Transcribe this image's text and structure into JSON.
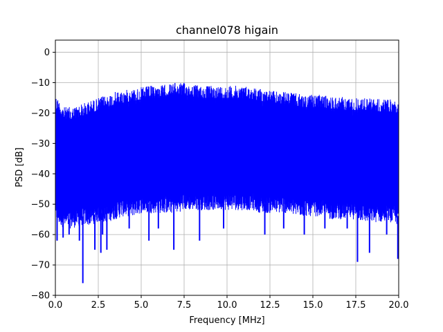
{
  "chart_data": {
    "type": "line",
    "title": "channel078 higain",
    "xlabel": "Frequency [MHz]",
    "ylabel": "PSD [dB]",
    "xlim": [
      0,
      20
    ],
    "ylim": [
      -80,
      4
    ],
    "xticks": [
      0,
      2.5,
      5,
      7.5,
      10,
      12.5,
      15,
      17.5,
      20
    ],
    "xtick_labels": [
      "0.0",
      "2.5",
      "5.0",
      "7.5",
      "10.0",
      "12.5",
      "15.0",
      "17.5",
      "20.0"
    ],
    "yticks": [
      0,
      -10,
      -20,
      -30,
      -40,
      -50,
      -60,
      -70,
      -80
    ],
    "ytick_labels": [
      "0",
      "−10",
      "−20",
      "−30",
      "−40",
      "−50",
      "−60",
      "−70",
      "−80"
    ],
    "grid": true,
    "series": [
      {
        "color": "#0000ff",
        "x": [
          0,
          0.5,
          1.0,
          1.5,
          2.0,
          2.5,
          3.0,
          3.5,
          4.0,
          4.5,
          5.0,
          5.5,
          6.0,
          6.5,
          7.0,
          7.5,
          8.0,
          8.5,
          9.0,
          9.5,
          10.0,
          10.5,
          11.0,
          11.5,
          12.0,
          12.5,
          13.0,
          13.5,
          14.0,
          14.5,
          15.0,
          15.5,
          16.0,
          16.5,
          17.0,
          17.5,
          18.0,
          18.5,
          19.0,
          19.5,
          20.0
        ],
        "upper": [
          -14,
          -18,
          -18,
          -17,
          -16,
          -15,
          -14,
          -13,
          -12.5,
          -12,
          -11.5,
          -11,
          -11,
          -10.5,
          -10,
          -10,
          -10.5,
          -11,
          -11,
          -11,
          -11,
          -11,
          -11,
          -11.5,
          -12,
          -12.5,
          -13,
          -13,
          -13.5,
          -14,
          -14,
          -14,
          -14.5,
          -14.5,
          -15,
          -15,
          -15,
          -15,
          -15.5,
          -15.5,
          -16
        ],
        "lower": [
          -53,
          -55,
          -55,
          -54,
          -54,
          -53,
          -53,
          -52,
          -51,
          -51,
          -50,
          -50,
          -50,
          -50,
          -50,
          -49,
          -49,
          -49,
          -49,
          -49,
          -49,
          -49,
          -49,
          -49,
          -50,
          -50,
          -50,
          -50,
          -51,
          -51,
          -51,
          -51,
          -52,
          -52,
          -52,
          -52,
          -53,
          -53,
          -53,
          -53,
          -54
        ],
        "spikes": [
          {
            "x": 0.1,
            "y": -62
          },
          {
            "x": 0.45,
            "y": -61
          },
          {
            "x": 0.8,
            "y": -60
          },
          {
            "x": 1.4,
            "y": -62
          },
          {
            "x": 1.6,
            "y": -76
          },
          {
            "x": 2.3,
            "y": -65
          },
          {
            "x": 2.65,
            "y": -66
          },
          {
            "x": 2.75,
            "y": -60
          },
          {
            "x": 3.0,
            "y": -65
          },
          {
            "x": 4.3,
            "y": -58
          },
          {
            "x": 5.45,
            "y": -62
          },
          {
            "x": 6.0,
            "y": -58
          },
          {
            "x": 6.9,
            "y": -65
          },
          {
            "x": 8.4,
            "y": -62
          },
          {
            "x": 9.8,
            "y": -58
          },
          {
            "x": 12.2,
            "y": -60
          },
          {
            "x": 13.3,
            "y": -58
          },
          {
            "x": 14.5,
            "y": -60
          },
          {
            "x": 15.7,
            "y": -58
          },
          {
            "x": 17.0,
            "y": -58
          },
          {
            "x": 17.6,
            "y": -69
          },
          {
            "x": 18.3,
            "y": -66
          },
          {
            "x": 19.3,
            "y": -60
          },
          {
            "x": 19.95,
            "y": -68
          }
        ]
      }
    ]
  }
}
